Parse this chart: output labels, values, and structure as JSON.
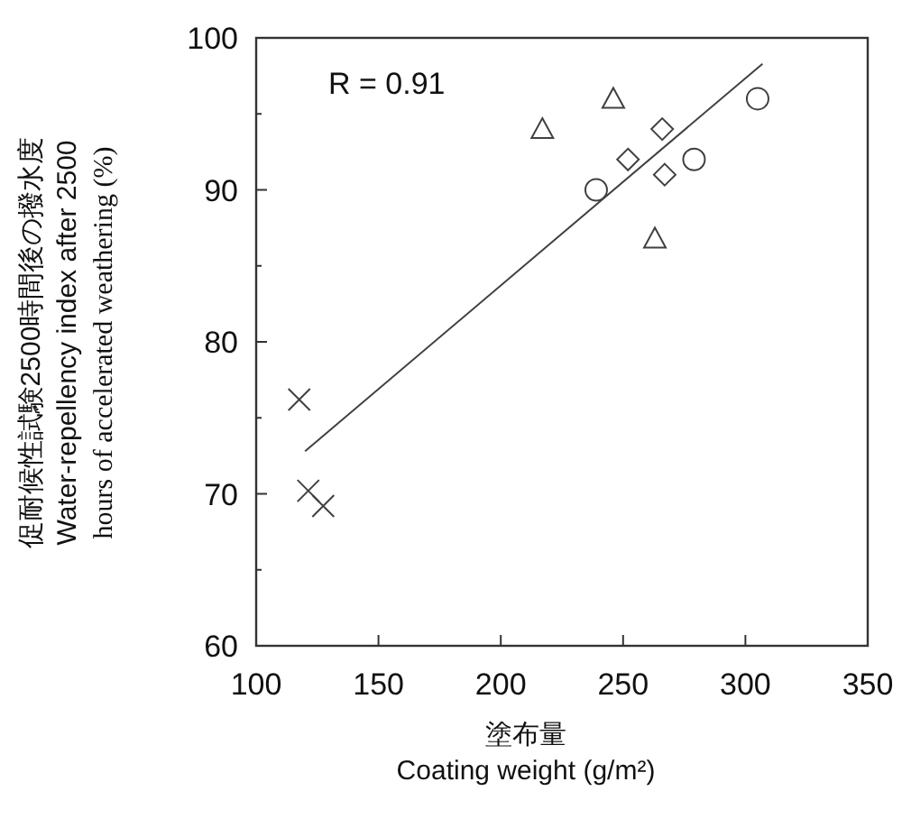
{
  "chart_data": {
    "type": "scatter",
    "xlabel": "塗布量\nCoating weight (g/m²)",
    "ylabel": "促耐候性試験2500時間後の撥水度\nWater-repellency index after 2500\nhours of accelerated weathering (%)",
    "xlim": [
      100,
      350
    ],
    "xticks": [
      100,
      150,
      200,
      250,
      300,
      350
    ],
    "ylim": [
      60,
      100
    ],
    "yticks": [
      60,
      {
        "value": 65,
        "label": null
      },
      70,
      {
        "value": 75,
        "label": null
      },
      80,
      {
        "value": 85,
        "label": null
      },
      90,
      {
        "value": 95,
        "label": null
      },
      100
    ],
    "grid": false,
    "annotations": [
      "R = 0.91"
    ],
    "series": [
      {
        "color": "#404040",
        "marker": "cross",
        "x": [
          117.6,
          121.3,
          127.4
        ],
        "values": [
          76.2,
          70.2,
          69.2
        ]
      },
      {
        "color": "#404040",
        "marker": "triangle",
        "x": [
          217,
          246,
          263
        ],
        "values": [
          94,
          96,
          86.8
        ]
      },
      {
        "color": "#404040",
        "marker": "diamond",
        "x": [
          252,
          266,
          267
        ],
        "values": [
          92,
          94,
          91
        ]
      },
      {
        "color": "#404040",
        "marker": "circle",
        "x": [
          239,
          279,
          305
        ],
        "values": [
          90,
          92,
          96
        ]
      },
      {
        "type": "line",
        "color": "#404040",
        "marker": "none",
        "line_style": "solid",
        "x": [
          120,
          307
        ],
        "values": [
          72.8,
          98.3
        ]
      }
    ]
  }
}
